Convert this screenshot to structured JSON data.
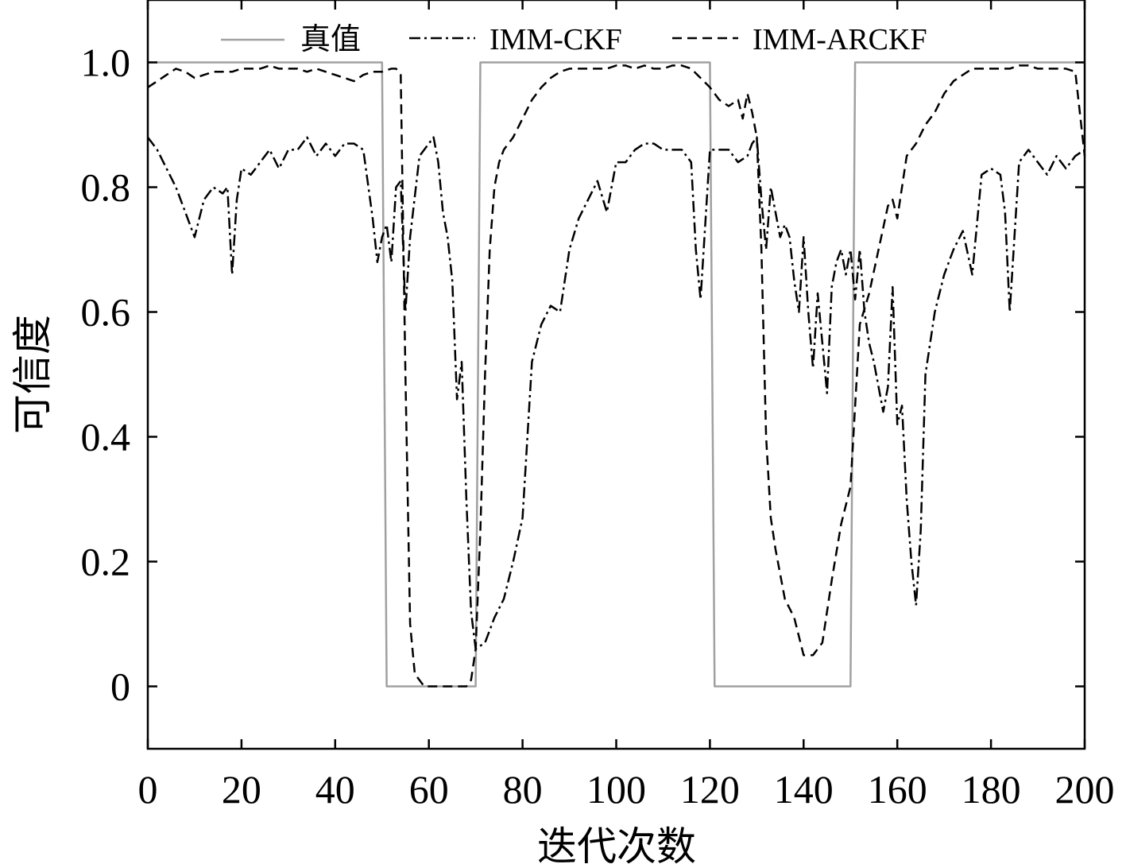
{
  "chart_data": {
    "type": "line",
    "xlabel": "迭代次数",
    "ylabel": "可信度",
    "xlim": [
      0,
      200
    ],
    "ylim": [
      -0.1,
      1.1
    ],
    "xticks": [
      0,
      20,
      40,
      60,
      80,
      100,
      120,
      140,
      160,
      180,
      200
    ],
    "xtick_labels": [
      "0",
      "20",
      "40",
      "60",
      "80",
      "100",
      "120",
      "140",
      "160",
      "180",
      "200"
    ],
    "yticks": [
      0,
      0.2,
      0.4,
      0.6,
      0.8,
      1.0
    ],
    "ytick_labels": [
      "0",
      "0.2",
      "0.4",
      "0.6",
      "0.8",
      "1.0"
    ],
    "grid": false,
    "legend_position": "top",
    "series": [
      {
        "name": "真值",
        "style": "solid",
        "color": "#a0a0a0",
        "x": [
          0,
          50,
          51,
          70,
          71,
          120,
          121,
          150,
          151,
          200
        ],
        "y": [
          1,
          1,
          0,
          0,
          1,
          1,
          0,
          0,
          1,
          1
        ]
      },
      {
        "name": "IMM-CKF",
        "style": "dashdot",
        "color": "#000000",
        "x": [
          0,
          2,
          4,
          6,
          8,
          10,
          12,
          14,
          16,
          17,
          18,
          19,
          20,
          22,
          24,
          26,
          28,
          30,
          32,
          34,
          36,
          38,
          40,
          42,
          44,
          46,
          48,
          49,
          50,
          51,
          52,
          53,
          54,
          55,
          56,
          58,
          60,
          61,
          62,
          63,
          64,
          65,
          66,
          67,
          68,
          69,
          70,
          72,
          74,
          76,
          78,
          80,
          82,
          84,
          86,
          88,
          90,
          92,
          94,
          96,
          98,
          100,
          102,
          104,
          106,
          108,
          110,
          112,
          114,
          116,
          117,
          118,
          120,
          122,
          124,
          126,
          128,
          129,
          130,
          131,
          132,
          133,
          134,
          135,
          136,
          137,
          138,
          139,
          140,
          141,
          142,
          143,
          144,
          145,
          146,
          147,
          148,
          149,
          150,
          151,
          152,
          153,
          154,
          155,
          156,
          157,
          158,
          159,
          160,
          161,
          162,
          163,
          164,
          165,
          166,
          168,
          170,
          172,
          174,
          176,
          178,
          180,
          182,
          183,
          184,
          186,
          188,
          190,
          192,
          194,
          196,
          198,
          200
        ],
        "y": [
          0.88,
          0.86,
          0.83,
          0.8,
          0.76,
          0.72,
          0.78,
          0.8,
          0.79,
          0.8,
          0.66,
          0.78,
          0.83,
          0.82,
          0.84,
          0.86,
          0.83,
          0.86,
          0.86,
          0.88,
          0.85,
          0.87,
          0.85,
          0.87,
          0.87,
          0.86,
          0.75,
          0.68,
          0.72,
          0.74,
          0.68,
          0.8,
          0.81,
          0.6,
          0.72,
          0.85,
          0.87,
          0.88,
          0.84,
          0.76,
          0.72,
          0.65,
          0.46,
          0.52,
          0.3,
          0.12,
          0.06,
          0.07,
          0.11,
          0.14,
          0.2,
          0.27,
          0.52,
          0.58,
          0.61,
          0.6,
          0.7,
          0.75,
          0.78,
          0.81,
          0.76,
          0.84,
          0.84,
          0.86,
          0.87,
          0.87,
          0.86,
          0.86,
          0.86,
          0.84,
          0.7,
          0.62,
          0.86,
          0.86,
          0.86,
          0.84,
          0.85,
          0.87,
          0.88,
          0.78,
          0.7,
          0.8,
          0.76,
          0.72,
          0.74,
          0.72,
          0.65,
          0.6,
          0.72,
          0.6,
          0.51,
          0.63,
          0.55,
          0.47,
          0.64,
          0.68,
          0.7,
          0.66,
          0.7,
          0.62,
          0.7,
          0.6,
          0.55,
          0.52,
          0.48,
          0.44,
          0.48,
          0.64,
          0.42,
          0.45,
          0.3,
          0.2,
          0.13,
          0.25,
          0.5,
          0.6,
          0.66,
          0.7,
          0.73,
          0.66,
          0.82,
          0.83,
          0.82,
          0.76,
          0.6,
          0.84,
          0.86,
          0.84,
          0.82,
          0.85,
          0.83,
          0.85,
          0.86
        ]
      },
      {
        "name": "IMM-ARCKF",
        "style": "dashed",
        "color": "#000000",
        "x": [
          0,
          2,
          4,
          6,
          8,
          10,
          12,
          14,
          16,
          18,
          20,
          22,
          24,
          26,
          28,
          30,
          32,
          34,
          36,
          38,
          40,
          42,
          44,
          46,
          48,
          50,
          52,
          53,
          54,
          55,
          56,
          57,
          58,
          59,
          60,
          62,
          64,
          66,
          68,
          69,
          70,
          71,
          72,
          73,
          74,
          75,
          76,
          78,
          80,
          82,
          84,
          86,
          88,
          90,
          92,
          94,
          96,
          98,
          100,
          102,
          104,
          106,
          108,
          110,
          112,
          114,
          116,
          118,
          120,
          122,
          124,
          126,
          127,
          128,
          129,
          130,
          131,
          132,
          133,
          134,
          136,
          138,
          140,
          142,
          144,
          146,
          148,
          150,
          152,
          154,
          156,
          158,
          159,
          160,
          162,
          164,
          166,
          168,
          170,
          172,
          174,
          176,
          178,
          180,
          182,
          184,
          186,
          188,
          190,
          192,
          194,
          196,
          198,
          200
        ],
        "y": [
          0.96,
          0.97,
          0.98,
          0.99,
          0.985,
          0.975,
          0.98,
          0.985,
          0.985,
          0.985,
          0.99,
          0.99,
          0.99,
          0.995,
          0.99,
          0.99,
          0.99,
          0.985,
          0.99,
          0.985,
          0.98,
          0.975,
          0.97,
          0.98,
          0.985,
          0.985,
          0.99,
          0.99,
          0.98,
          0.5,
          0.1,
          0.02,
          0.01,
          0.0,
          0.0,
          0.0,
          0.0,
          0.0,
          0.0,
          0.01,
          0.06,
          0.25,
          0.5,
          0.7,
          0.8,
          0.84,
          0.86,
          0.88,
          0.91,
          0.94,
          0.96,
          0.975,
          0.985,
          0.99,
          0.99,
          0.99,
          0.99,
          0.99,
          0.995,
          0.995,
          0.99,
          0.995,
          0.99,
          0.99,
          0.995,
          0.995,
          0.99,
          0.975,
          0.96,
          0.94,
          0.93,
          0.94,
          0.91,
          0.95,
          0.92,
          0.88,
          0.7,
          0.4,
          0.27,
          0.22,
          0.14,
          0.11,
          0.05,
          0.05,
          0.07,
          0.17,
          0.26,
          0.32,
          0.58,
          0.63,
          0.7,
          0.77,
          0.78,
          0.75,
          0.85,
          0.87,
          0.9,
          0.92,
          0.95,
          0.97,
          0.98,
          0.99,
          0.99,
          0.99,
          0.99,
          0.99,
          0.995,
          0.995,
          0.99,
          0.99,
          0.99,
          0.99,
          0.985,
          0.85
        ]
      }
    ]
  }
}
